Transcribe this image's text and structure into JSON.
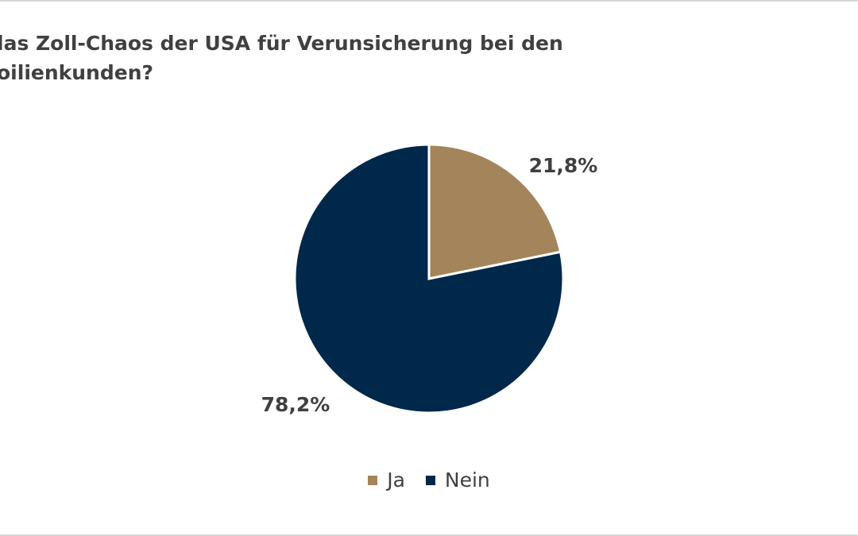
{
  "title_lines": [
    "las Zoll-Chaos der USA für Verunsicherung bei den",
    "oilienkunden?"
  ],
  "chart_data": {
    "type": "pie",
    "categories": [
      "Ja",
      "Nein"
    ],
    "values": [
      21.8,
      78.2
    ],
    "labels": [
      "21,8%",
      "78,2%"
    ],
    "colors": [
      "#a4845a",
      "#00284a"
    ],
    "legend_position": "bottom"
  },
  "legend": [
    {
      "label": "Ja",
      "color": "#a4845a"
    },
    {
      "label": "Nein",
      "color": "#00284a"
    }
  ]
}
